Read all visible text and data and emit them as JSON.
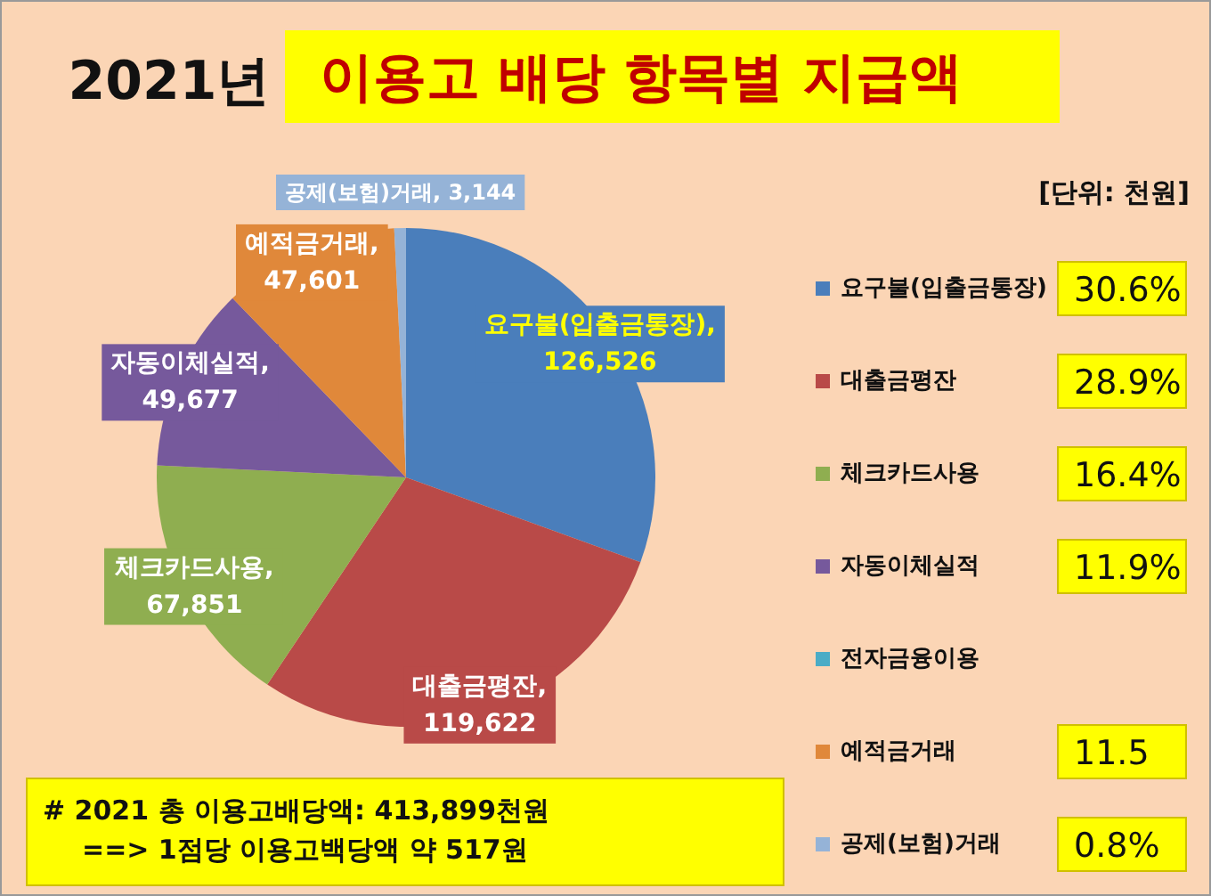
{
  "chart_data": {
    "type": "pie",
    "title": "2021년",
    "subtitle": "이용고 배당 항목별 지급액",
    "categories": [
      "요구불(입출금통장)",
      "대출금평잔",
      "체크카드사용",
      "자동이체실적",
      "전자금융이용",
      "예적금거래",
      "공제(보험)거래"
    ],
    "values": [
      126526,
      119622,
      67851,
      49677,
      0,
      47601,
      3144
    ],
    "value_labels": [
      "요구불(입출금통장), 126,526",
      "대출금평잔, 119,622",
      "체크카드사용, 67,851",
      "자동이체실적, 49,677",
      null,
      "예적금거래, 47,601",
      "공제(보험)거래, 3,144"
    ],
    "colors": [
      "#4a7ebb",
      "#b94a48",
      "#8fae50",
      "#76599c",
      "#4bacc6",
      "#e0883a",
      "#95b3d7"
    ],
    "legend": "right",
    "annotations": [
      "[단위: 천원]",
      "30.6%",
      "28.9%",
      "16.4%",
      "11.9%",
      "11.5",
      "0.8%",
      "# 2021 총 이용고배당액: 413,899천원",
      "==> 1점당 이용고백당액 약 517원"
    ]
  }
}
